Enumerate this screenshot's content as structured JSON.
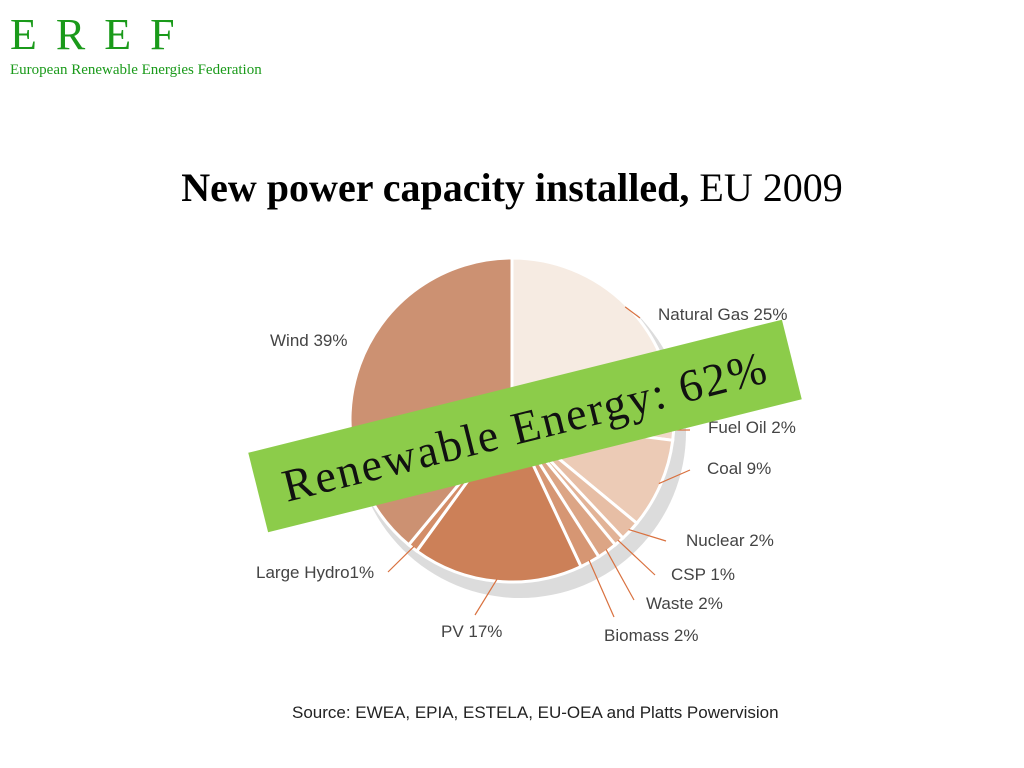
{
  "header": {
    "brand": "E R E F",
    "subtitle": "European Renewable Energies Federation"
  },
  "slide": {
    "title_bold": "New power capacity installed,",
    "title_rest": " EU 2009",
    "banner": "Renewable Energy: 62%",
    "source": "Source: EWEA, EPIA, ESTELA, EU-OEA and Platts Powervision"
  },
  "chart_data": {
    "type": "pie",
    "title": "",
    "start": "12 o'clock",
    "direction": "clockwise",
    "slices": [
      {
        "label": "Natural Gas 25%",
        "value": 25,
        "color": "#f6ebe2"
      },
      {
        "label": "Fuel Oil 2%",
        "value": 2,
        "color": "#f0d8c8"
      },
      {
        "label": "Coal 9%",
        "value": 9,
        "color": "#eccbb6"
      },
      {
        "label": "Nuclear 2%",
        "value": 2,
        "color": "#e7bea5"
      },
      {
        "label": "CSP 1%",
        "value": 1,
        "color": "#e2b397"
      },
      {
        "label": "Waste 2%",
        "value": 2,
        "color": "#dca585"
      },
      {
        "label": "Biomass 2%",
        "value": 2,
        "color": "#d69673"
      },
      {
        "label": "PV 17%",
        "value": 17,
        "color": "#cc8058"
      },
      {
        "label": "Large Hydro1%",
        "value": 1,
        "color": "#d38d68"
      },
      {
        "label": "Wind 39%",
        "value": 39,
        "color": "#cc9172"
      }
    ]
  }
}
